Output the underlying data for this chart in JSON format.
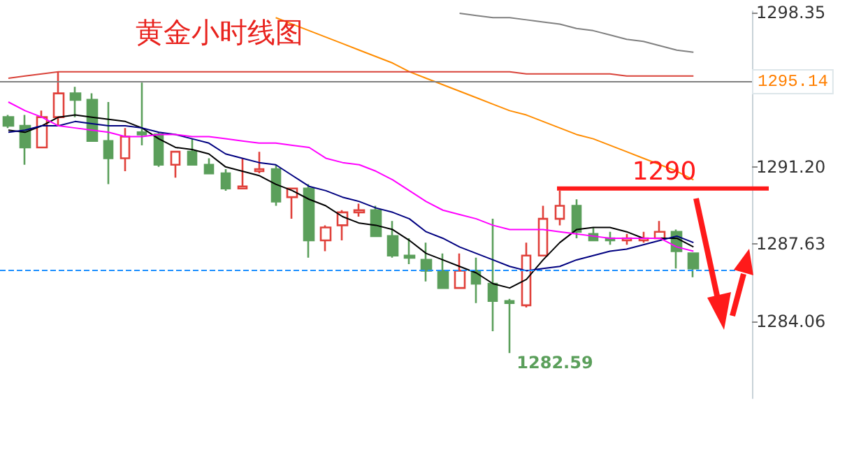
{
  "chart_data": {
    "type": "candlestick",
    "title": "黄金小时线图",
    "categories": [
      null,
      null,
      null,
      null,
      null,
      null,
      null,
      null,
      null,
      null,
      null,
      null,
      null,
      null,
      null,
      null,
      null,
      null,
      null,
      null,
      null,
      null,
      null,
      null,
      null,
      null,
      null,
      null,
      null,
      null,
      null,
      null,
      null,
      null,
      null,
      null,
      null,
      null,
      null,
      null,
      null,
      null,
      null,
      null,
      null
    ],
    "ohlc": [
      [
        1293.5,
        1293.6,
        1293.0,
        1293.1
      ],
      [
        1293.1,
        1293.6,
        1291.3,
        1292.1
      ],
      [
        1292.1,
        1293.8,
        1292.1,
        1293.5
      ],
      [
        1293.5,
        1295.6,
        1293.1,
        1294.6
      ],
      [
        1294.6,
        1294.9,
        1293.5,
        1294.3
      ],
      [
        1294.3,
        1294.6,
        1292.4,
        1292.4
      ],
      [
        1292.4,
        1294.2,
        1290.4,
        1291.6
      ],
      [
        1291.6,
        1293.0,
        1291.0,
        1292.6
      ],
      [
        1292.8,
        1295.1,
        1292.2,
        1292.7
      ],
      [
        1292.7,
        1292.8,
        1291.2,
        1291.3
      ],
      [
        1291.3,
        1291.9,
        1290.7,
        1291.9
      ],
      [
        1291.9,
        1292.5,
        1291.3,
        1291.3
      ],
      [
        1291.3,
        1291.6,
        1290.9,
        1290.9
      ],
      [
        1290.9,
        1291.1,
        1290.1,
        1290.2
      ],
      [
        1290.2,
        1291.6,
        1290.2,
        1290.3
      ],
      [
        1291.0,
        1291.9,
        1290.9,
        1291.1
      ],
      [
        1291.1,
        1291.3,
        1289.4,
        1289.6
      ],
      [
        1289.8,
        1290.2,
        1288.8,
        1290.2
      ],
      [
        1290.2,
        1290.4,
        1287.0,
        1287.8
      ],
      [
        1287.8,
        1288.5,
        1287.3,
        1288.4
      ],
      [
        1288.5,
        1289.2,
        1287.8,
        1289.1
      ],
      [
        1289.1,
        1289.5,
        1288.9,
        1289.2
      ],
      [
        1289.2,
        1289.4,
        1288.0,
        1288.0
      ],
      [
        1288.0,
        1288.7,
        1287.0,
        1287.1
      ],
      [
        1287.1,
        1287.9,
        1286.7,
        1287.0
      ],
      [
        1286.9,
        1287.7,
        1285.9,
        1286.4
      ],
      [
        1286.4,
        1287.2,
        1285.6,
        1285.6
      ],
      [
        1285.6,
        1287.2,
        1285.6,
        1286.4
      ],
      [
        1286.4,
        1287.0,
        1284.9,
        1285.8
      ],
      [
        1285.8,
        1288.8,
        1283.6,
        1285.0
      ],
      [
        1285.0,
        1285.1,
        1282.59,
        1284.9
      ],
      [
        1284.8,
        1287.7,
        1284.7,
        1287.1
      ],
      [
        1287.1,
        1289.4,
        1287.1,
        1288.8
      ],
      [
        1288.8,
        1290.1,
        1288.5,
        1289.4
      ],
      [
        1289.4,
        1289.7,
        1287.9,
        1288.2
      ],
      [
        1288.1,
        1288.4,
        1287.8,
        1287.8
      ],
      [
        1287.9,
        1288.2,
        1287.6,
        1287.8
      ],
      [
        1287.8,
        1288.1,
        1287.6,
        1287.9
      ],
      [
        1287.8,
        1288.2,
        1287.7,
        1287.9
      ],
      [
        1287.9,
        1288.7,
        1287.9,
        1288.2
      ],
      [
        1288.2,
        1288.3,
        1286.5,
        1287.3
      ],
      [
        1287.2,
        1287.2,
        1286.1,
        1286.5
      ],
      null,
      null,
      null
    ],
    "series": [
      {
        "type": "line",
        "color": "#000000",
        "values": [
          1292.9,
          1292.8,
          1293.1,
          1293.5,
          1293.6,
          1293.5,
          1293.4,
          1293.3,
          1293.0,
          1292.5,
          1292.1,
          1292.0,
          1291.8,
          1291.2,
          1291.0,
          1290.8,
          1290.4,
          1290.1,
          1289.7,
          1289.4,
          1288.9,
          1288.6,
          1288.5,
          1288.3,
          1287.8,
          1287.2,
          1286.9,
          1286.6,
          1286.3,
          1285.8,
          1285.6,
          1286.0,
          1286.9,
          1287.7,
          1288.3,
          1288.4,
          1288.4,
          1288.2,
          1287.9,
          1287.9,
          1287.9,
          1287.5,
          null,
          null,
          null
        ]
      },
      {
        "type": "line",
        "color": "#000080",
        "values": [
          1292.8,
          1292.9,
          1293.1,
          1293.1,
          1293.3,
          1293.2,
          1293.1,
          1293.1,
          1293.0,
          1292.8,
          1292.7,
          1292.5,
          1292.3,
          1291.8,
          1291.6,
          1291.4,
          1291.3,
          1290.8,
          1290.3,
          1290.1,
          1289.8,
          1289.6,
          1289.3,
          1289.1,
          1288.8,
          1288.2,
          1287.9,
          1287.5,
          1287.2,
          1286.9,
          1286.6,
          1286.4,
          1286.5,
          1286.6,
          1286.9,
          1287.1,
          1287.3,
          1287.4,
          1287.6,
          1287.8,
          1288.0,
          1287.7,
          null,
          null,
          null
        ]
      },
      {
        "type": "line",
        "color": "#ff00ff",
        "values": [
          1294.2,
          1293.8,
          1293.5,
          1293.1,
          1293.0,
          1292.9,
          1292.8,
          1292.6,
          1292.6,
          1292.7,
          1292.7,
          1292.6,
          1292.6,
          1292.5,
          1292.4,
          1292.3,
          1292.3,
          1292.2,
          1292.1,
          1291.6,
          1291.4,
          1291.3,
          1291.0,
          1290.6,
          1290.1,
          1289.6,
          1289.2,
          1289.0,
          1288.8,
          1288.5,
          1288.3,
          1288.3,
          1288.3,
          1288.2,
          1288.1,
          1288.0,
          1287.9,
          1287.9,
          1287.9,
          1287.9,
          1287.5,
          1287.3,
          null,
          null,
          null
        ]
      },
      {
        "type": "line",
        "color": "#ff8c00",
        "values": [
          null,
          null,
          null,
          null,
          null,
          null,
          null,
          null,
          null,
          null,
          null,
          null,
          null,
          null,
          null,
          null,
          1298.1,
          1297.8,
          1297.5,
          1297.2,
          1296.9,
          1296.6,
          1296.3,
          1296.0,
          1295.6,
          1295.3,
          1295.0,
          1294.7,
          1294.4,
          1294.1,
          1293.8,
          1293.6,
          1293.3,
          1293.0,
          1292.7,
          1292.5,
          1292.2,
          1291.9,
          1291.6,
          1291.3,
          1291.0,
          1290.6,
          null,
          null,
          null
        ]
      },
      {
        "type": "line",
        "color": "#808080",
        "values": [
          null,
          null,
          null,
          null,
          null,
          null,
          null,
          null,
          null,
          null,
          null,
          null,
          null,
          null,
          null,
          null,
          null,
          null,
          null,
          null,
          null,
          null,
          null,
          null,
          null,
          null,
          null,
          1298.3,
          1298.2,
          1298.1,
          1298.1,
          1298.0,
          1297.9,
          1297.8,
          1297.6,
          1297.5,
          1297.3,
          1297.1,
          1297.0,
          1296.8,
          1296.6,
          1296.5,
          null,
          null,
          null
        ]
      },
      {
        "type": "line",
        "color": "#d9433a",
        "values": [
          1295.3,
          1295.4,
          1295.5,
          1295.6,
          1295.6,
          1295.6,
          1295.6,
          1295.6,
          1295.6,
          1295.6,
          1295.6,
          1295.6,
          1295.6,
          1295.6,
          1295.6,
          1295.6,
          1295.6,
          1295.6,
          1295.6,
          1295.6,
          1295.6,
          1295.6,
          1295.6,
          1295.6,
          1295.6,
          1295.6,
          1295.6,
          1295.6,
          1295.6,
          1295.6,
          1295.6,
          1295.5,
          1295.5,
          1295.5,
          1295.5,
          1295.5,
          1295.5,
          1295.4,
          1295.4,
          1295.4,
          1295.4,
          1295.4,
          null,
          null,
          null
        ]
      }
    ],
    "ylim": [
      1280.5,
      1298.4
    ],
    "yticks": [
      1284.06,
      1287.63,
      {
        "value": 1291.2,
        "label": "1291.20"
      },
      1298.35
    ],
    "ref_lines": [
      {
        "axis": "y",
        "value": 1295.14,
        "label": "1295.14",
        "color": "#808080",
        "line_style": "solid"
      },
      {
        "axis": "y",
        "value": 1286.44,
        "color": "#1e90ff",
        "line_style": "dashed"
      },
      {
        "axis": "y",
        "value": 1290.2,
        "label": "1290",
        "color": "#ff1a1a",
        "line_style": "solid"
      }
    ],
    "annotations": [
      "1282.59"
    ],
    "marker": "none",
    "grid": false
  }
}
